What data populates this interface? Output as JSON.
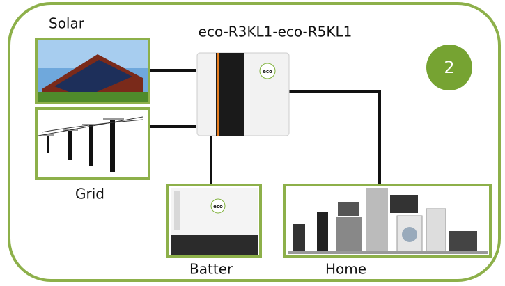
{
  "title": "eco-R3KL1-eco-R5KL1",
  "badge": "2",
  "nodes": [
    {
      "label": "Solar"
    },
    {
      "label": "Grid"
    },
    {
      "label": "Batter"
    },
    {
      "label": "Home"
    }
  ],
  "logo": "eco"
}
